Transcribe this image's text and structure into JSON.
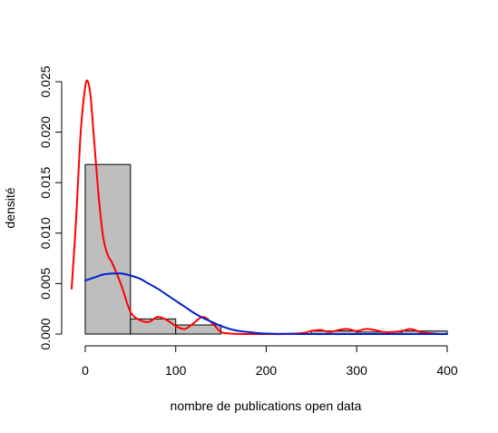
{
  "chart_data": {
    "type": "histogram",
    "title": "",
    "xlabel": "nombre de publications open data",
    "ylabel": "densité",
    "xlim": [
      -15,
      400
    ],
    "ylim": [
      0,
      0.025
    ],
    "x_ticks": [
      0,
      100,
      200,
      300,
      400
    ],
    "x_tick_labels": [
      "0",
      "100",
      "200",
      "300",
      "400"
    ],
    "y_ticks": [
      0.0,
      0.005,
      0.01,
      0.015,
      0.02,
      0.025
    ],
    "y_tick_labels": [
      "0.000",
      "0.005",
      "0.010",
      "0.015",
      "0.020",
      "0.025"
    ],
    "bins": [
      {
        "start": 0,
        "end": 50,
        "density": 0.0168
      },
      {
        "start": 50,
        "end": 100,
        "density": 0.0015
      },
      {
        "start": 100,
        "end": 150,
        "density": 0.0009
      },
      {
        "start": 150,
        "end": 200,
        "density": 0.0
      },
      {
        "start": 200,
        "end": 250,
        "density": 0.0
      },
      {
        "start": 250,
        "end": 300,
        "density": 0.0003
      },
      {
        "start": 300,
        "end": 350,
        "density": 0.0002
      },
      {
        "start": 350,
        "end": 400,
        "density": 0.0003
      }
    ],
    "bar_fill": "#bebebe",
    "series": [
      {
        "type": "line",
        "color": "#ff0000",
        "x": [
          -15,
          -10,
          -5,
          0,
          3,
          6,
          10,
          15,
          20,
          25,
          30,
          40,
          50,
          60,
          70,
          80,
          90,
          100,
          110,
          120,
          130,
          140,
          150,
          160,
          180,
          200,
          220,
          240,
          250,
          260,
          270,
          280,
          290,
          300,
          310,
          320,
          330,
          340,
          350,
          360,
          370,
          380,
          390,
          400
        ],
        "y": [
          0.0045,
          0.0115,
          0.02,
          0.0245,
          0.025,
          0.0235,
          0.019,
          0.0135,
          0.0095,
          0.0078,
          0.007,
          0.0048,
          0.0022,
          0.0014,
          0.0012,
          0.0017,
          0.0014,
          0.0008,
          0.0005,
          0.0011,
          0.0017,
          0.0011,
          0.0002,
          5e-05,
          0.0,
          0.0,
          0.0,
          0.0001,
          0.0003,
          0.0004,
          0.0002,
          0.0004,
          0.0005,
          0.0003,
          0.0005,
          0.0004,
          0.0002,
          0.0002,
          0.0003,
          0.0005,
          0.0002,
          0.0001,
          0.0,
          0.0
        ]
      },
      {
        "type": "line",
        "color": "#0022cc",
        "x": [
          0,
          10,
          20,
          30,
          35,
          40,
          50,
          60,
          70,
          80,
          90,
          100,
          110,
          120,
          130,
          140,
          150,
          160,
          170,
          180,
          190,
          200,
          220,
          240,
          260,
          280,
          300,
          350,
          400
        ],
        "y": [
          0.0053,
          0.0056,
          0.0059,
          0.006,
          0.006,
          0.006,
          0.0058,
          0.0055,
          0.005,
          0.0045,
          0.0039,
          0.0033,
          0.0027,
          0.0021,
          0.0016,
          0.0012,
          0.0008,
          0.0005,
          0.0003,
          0.0002,
          0.0001,
          5e-05,
          2e-05,
          0.0,
          0.0,
          0.0,
          0.0,
          0.0,
          0.0
        ]
      }
    ]
  }
}
